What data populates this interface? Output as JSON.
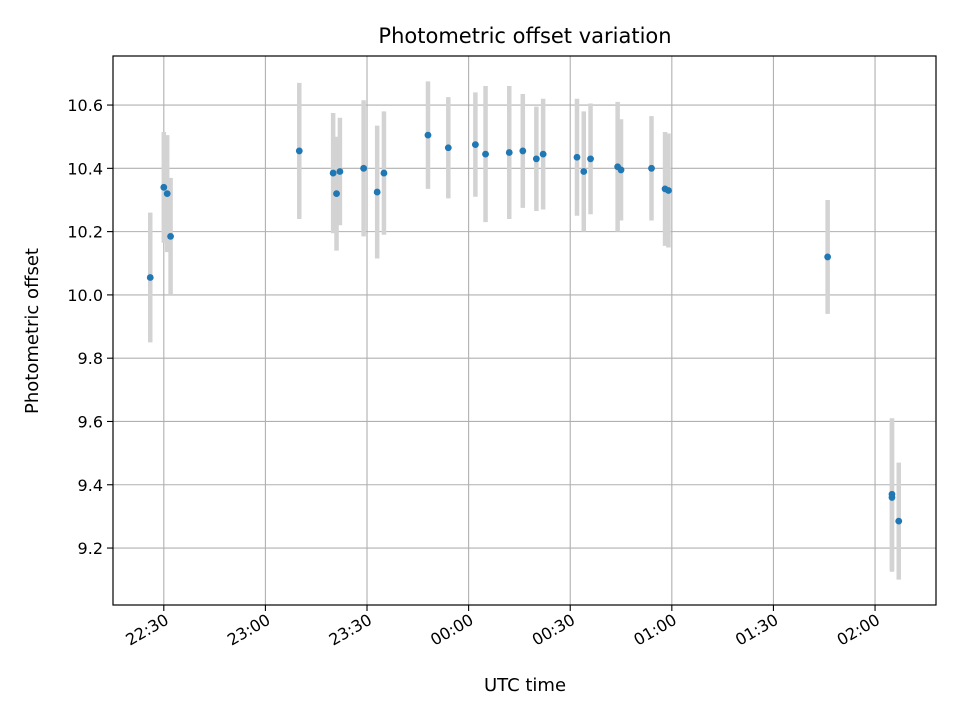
{
  "chart_data": {
    "type": "scatter",
    "title": "Photometric offset variation",
    "xlabel": "UTC time",
    "ylabel": "Photometric offset",
    "xlim": [
      "22:15",
      "02:18"
    ],
    "ylim": [
      9.02,
      10.755
    ],
    "grid": true,
    "x_ticks": [
      "22:30",
      "23:00",
      "23:30",
      "00:00",
      "00:30",
      "01:00",
      "01:30",
      "02:00"
    ],
    "y_ticks": [
      9.2,
      9.4,
      9.6,
      9.8,
      10.0,
      10.2,
      10.4,
      10.6
    ],
    "y_tick_labels": [
      "9.2",
      "9.4",
      "9.6",
      "9.8",
      "10.0",
      "10.2",
      "10.4",
      "10.6"
    ],
    "colors": {
      "point": "#1f77b4",
      "errorbar": "#d3d3d3",
      "grid": "#b0b0b0"
    },
    "points": [
      {
        "x": "22:26",
        "y": 10.055,
        "err": 0.205
      },
      {
        "x": "22:30",
        "y": 10.34,
        "err": 0.175
      },
      {
        "x": "22:31",
        "y": 10.32,
        "err": 0.185
      },
      {
        "x": "22:32",
        "y": 10.185,
        "err": 0.185
      },
      {
        "x": "23:10",
        "y": 10.455,
        "err": 0.215
      },
      {
        "x": "23:20",
        "y": 10.385,
        "err": 0.19
      },
      {
        "x": "23:21",
        "y": 10.32,
        "err": 0.18
      },
      {
        "x": "23:22",
        "y": 10.39,
        "err": 0.17
      },
      {
        "x": "23:29",
        "y": 10.4,
        "err": 0.215
      },
      {
        "x": "23:33",
        "y": 10.325,
        "err": 0.21
      },
      {
        "x": "23:35",
        "y": 10.385,
        "err": 0.195
      },
      {
        "x": "23:48",
        "y": 10.505,
        "err": 0.17
      },
      {
        "x": "23:54",
        "y": 10.465,
        "err": 0.16
      },
      {
        "x": "00:02",
        "y": 10.475,
        "err": 0.165
      },
      {
        "x": "00:05",
        "y": 10.445,
        "err": 0.215
      },
      {
        "x": "00:12",
        "y": 10.45,
        "err": 0.21
      },
      {
        "x": "00:16",
        "y": 10.455,
        "err": 0.18
      },
      {
        "x": "00:20",
        "y": 10.43,
        "err": 0.165
      },
      {
        "x": "00:22",
        "y": 10.445,
        "err": 0.175
      },
      {
        "x": "00:32",
        "y": 10.435,
        "err": 0.185
      },
      {
        "x": "00:34",
        "y": 10.39,
        "err": 0.19
      },
      {
        "x": "00:36",
        "y": 10.43,
        "err": 0.175
      },
      {
        "x": "00:44",
        "y": 10.405,
        "err": 0.205
      },
      {
        "x": "00:45",
        "y": 10.395,
        "err": 0.16
      },
      {
        "x": "00:54",
        "y": 10.4,
        "err": 0.165
      },
      {
        "x": "00:58",
        "y": 10.335,
        "err": 0.18
      },
      {
        "x": "00:59",
        "y": 10.33,
        "err": 0.18
      },
      {
        "x": "01:46",
        "y": 10.12,
        "err": 0.18
      },
      {
        "x": "02:05",
        "y": 9.37,
        "err": 0.24
      },
      {
        "x": "02:05",
        "y": 9.36,
        "err": 0.235
      },
      {
        "x": "02:07",
        "y": 9.285,
        "err": 0.185
      }
    ]
  }
}
